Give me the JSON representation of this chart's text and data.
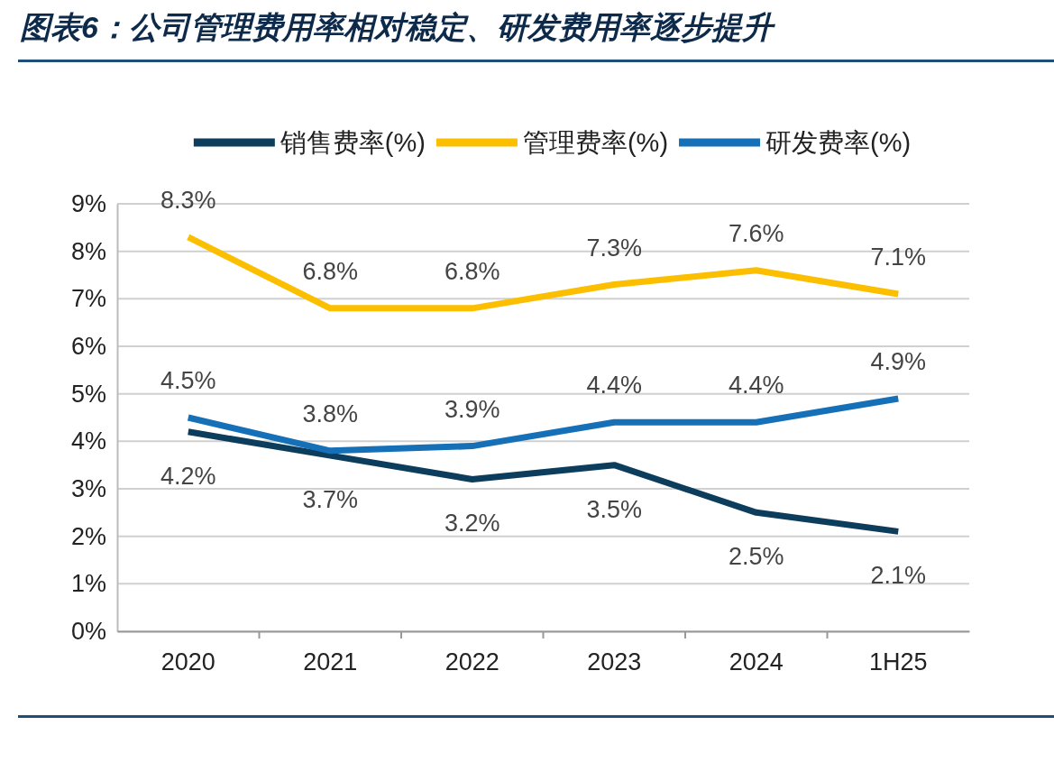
{
  "chart_data": {
    "type": "line",
    "title": "图表6：公司管理费用率相对稳定、研发费用率逐步提升",
    "categories": [
      "2020",
      "2021",
      "2022",
      "2023",
      "2024",
      "1H25"
    ],
    "series": [
      {
        "name": "销售费率(%)",
        "color": "#0d3d5c",
        "values": [
          4.2,
          3.7,
          3.2,
          3.5,
          2.5,
          2.1
        ],
        "value_labels": [
          "4.2%",
          "3.7%",
          "3.2%",
          "3.5%",
          "2.5%",
          "2.1%"
        ]
      },
      {
        "name": "管理费率(%)",
        "color": "#fbbf00",
        "values": [
          8.3,
          6.8,
          6.8,
          7.3,
          7.6,
          7.1
        ],
        "value_labels": [
          "8.3%",
          "6.8%",
          "6.8%",
          "7.3%",
          "7.6%",
          "7.1%"
        ]
      },
      {
        "name": "研发费率(%)",
        "color": "#1670b8",
        "values": [
          4.5,
          3.8,
          3.9,
          4.4,
          4.4,
          4.9
        ],
        "value_labels": [
          "4.5%",
          "3.8%",
          "3.9%",
          "4.4%",
          "4.4%",
          "4.9%"
        ]
      }
    ],
    "ylim": [
      0,
      9
    ],
    "yticks": [
      {
        "value": 0,
        "label": "0%"
      },
      {
        "value": 1,
        "label": "1%"
      },
      {
        "value": 2,
        "label": "2%"
      },
      {
        "value": 3,
        "label": "3%"
      },
      {
        "value": 4,
        "label": "4%"
      },
      {
        "value": 5,
        "label": "5%"
      },
      {
        "value": 6,
        "label": "6%"
      },
      {
        "value": 7,
        "label": "7%"
      },
      {
        "value": 8,
        "label": "8%"
      },
      {
        "value": 9,
        "label": "9%"
      }
    ],
    "grid": "y",
    "legend": "top",
    "marker": "none",
    "line_style": "solid"
  }
}
